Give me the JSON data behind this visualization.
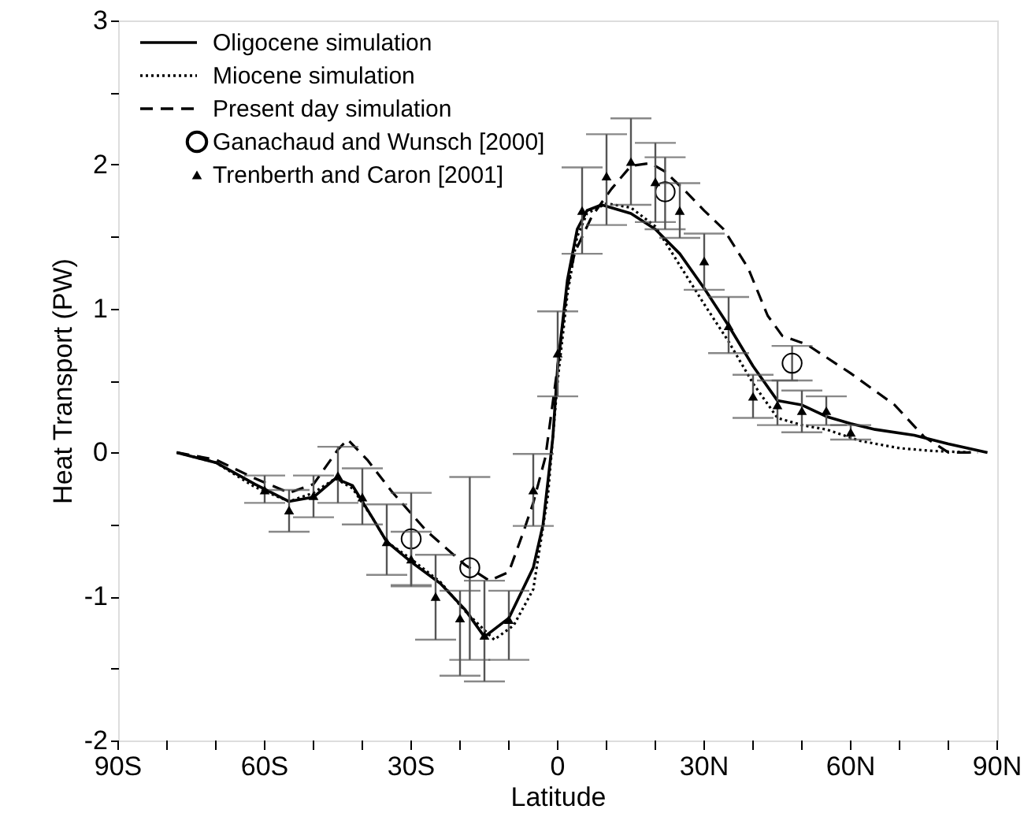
{
  "chart_data": {
    "type": "line",
    "xlabel": "Latitude",
    "ylabel": "Heat Transport (PW)",
    "xlim": [
      -90,
      90
    ],
    "ylim": [
      -2,
      3
    ],
    "xticks": [
      {
        "value": -90,
        "label": "90S"
      },
      {
        "value": -80,
        "label": null
      },
      {
        "value": -70,
        "label": null
      },
      {
        "value": -60,
        "label": "60S"
      },
      {
        "value": -50,
        "label": null
      },
      {
        "value": -40,
        "label": null
      },
      {
        "value": -30,
        "label": "30S"
      },
      {
        "value": -20,
        "label": null
      },
      {
        "value": -10,
        "label": null
      },
      0,
      {
        "value": 10,
        "label": null
      },
      {
        "value": 20,
        "label": null
      },
      {
        "value": 30,
        "label": "30N"
      },
      {
        "value": 40,
        "label": null
      },
      {
        "value": 50,
        "label": null
      },
      {
        "value": 60,
        "label": "60N"
      },
      {
        "value": 70,
        "label": null
      },
      {
        "value": 80,
        "label": null
      },
      {
        "value": 90,
        "label": "90N"
      }
    ],
    "yticks": [
      -2,
      {
        "value": -1.5,
        "label": null
      },
      -1,
      {
        "value": -0.5,
        "label": null
      },
      0,
      {
        "value": 0.5,
        "label": null
      },
      1,
      {
        "value": 1.5,
        "label": null
      },
      2,
      {
        "value": 2.5,
        "label": null
      },
      3
    ],
    "grid": false,
    "legend": "top left",
    "series": [
      {
        "name": "Oligocene simulation",
        "line_style": "solid",
        "marker": "none",
        "color": "#000000",
        "x": [
          -78,
          -70,
          -62,
          -55,
          -50,
          -45.5,
          -42,
          -38,
          -35,
          -30,
          -24,
          -19,
          -15,
          -10,
          -5,
          -3,
          -1,
          0,
          2,
          4,
          6,
          9,
          15,
          20,
          25,
          30,
          35,
          40,
          45,
          50,
          55,
          60,
          65,
          73,
          80,
          88
        ],
        "values": [
          0,
          -0.07,
          -0.22,
          -0.34,
          -0.31,
          -0.18,
          -0.23,
          -0.45,
          -0.62,
          -0.76,
          -0.91,
          -1.09,
          -1.28,
          -1.15,
          -0.8,
          -0.5,
          0.1,
          0.6,
          1.2,
          1.55,
          1.68,
          1.72,
          1.66,
          1.55,
          1.38,
          1.14,
          0.88,
          0.6,
          0.36,
          0.33,
          0.25,
          0.2,
          0.16,
          0.12,
          0.06,
          0
        ]
      },
      {
        "name": "Miocene simulation",
        "line_style": "dotted",
        "marker": "none",
        "color": "#000000",
        "x": [
          -78,
          -70,
          -62,
          -55,
          -50,
          -45.5,
          -42,
          -38,
          -35,
          -30,
          -24,
          -19,
          -13,
          -9,
          -5,
          -2,
          0,
          2,
          4,
          6,
          10,
          15,
          20,
          25,
          30,
          35,
          40,
          45,
          50,
          55,
          62,
          70,
          77,
          85
        ],
        "values": [
          0,
          -0.07,
          -0.24,
          -0.34,
          -0.28,
          -0.18,
          -0.25,
          -0.45,
          -0.62,
          -0.74,
          -0.9,
          -1.1,
          -1.3,
          -1.2,
          -0.95,
          -0.3,
          0.5,
          1.1,
          1.5,
          1.66,
          1.73,
          1.7,
          1.57,
          1.3,
          1.03,
          0.77,
          0.48,
          0.24,
          0.19,
          0.16,
          0.08,
          0.03,
          0.01,
          0
        ]
      },
      {
        "name": "Present day simulation",
        "line_style": "dashed",
        "marker": "none",
        "color": "#000000",
        "x": [
          -78,
          -70,
          -62,
          -55,
          -50,
          -45,
          -43,
          -39,
          -34,
          -27,
          -19,
          -14,
          -10,
          -7,
          -5,
          -2.5,
          0,
          2,
          3.5,
          7,
          11,
          15,
          19,
          22,
          26,
          30,
          34,
          39,
          43,
          46,
          51,
          60,
          69,
          75,
          80,
          86
        ],
        "values": [
          0,
          -0.05,
          -0.18,
          -0.28,
          -0.22,
          0.02,
          0.09,
          -0.05,
          -0.27,
          -0.54,
          -0.78,
          -0.89,
          -0.83,
          -0.55,
          -0.35,
          -0.03,
          0.6,
          1.15,
          1.39,
          1.64,
          1.83,
          1.99,
          2.01,
          1.95,
          1.82,
          1.68,
          1.55,
          1.28,
          0.95,
          0.81,
          0.75,
          0.55,
          0.33,
          0.11,
          0.0,
          0
        ]
      },
      {
        "name": "Ganachaud and Wunsch [2000]",
        "type": "scatter",
        "marker": "circle",
        "color": "#000000",
        "x": [
          -30,
          -18,
          22,
          48
        ],
        "values": [
          -0.6,
          -0.8,
          1.81,
          0.62
        ],
        "errors": [
          [
            -0.92,
            -0.28
          ],
          [
            -1.44,
            -0.17
          ],
          [
            1.55,
            2.05
          ],
          [
            0.5,
            0.74
          ]
        ]
      },
      {
        "name": "Trenberth and Caron [2001]",
        "type": "scatter",
        "marker": "triangle",
        "color": "#000000",
        "x": [
          -60,
          -55,
          -50,
          -45,
          -40,
          -35,
          -30,
          -25,
          -20,
          -15,
          -10,
          -5,
          0,
          5,
          10,
          15,
          20,
          25,
          30,
          35,
          40,
          45,
          50,
          55,
          60
        ],
        "values": [
          -0.26,
          -0.4,
          -0.3,
          -0.16,
          -0.31,
          -0.62,
          -0.74,
          -1.0,
          -1.15,
          -1.27,
          -1.16,
          -0.26,
          0.69,
          1.68,
          1.92,
          2.02,
          1.88,
          1.68,
          1.33,
          0.88,
          0.39,
          0.33,
          0.29,
          0.29,
          0.14
        ],
        "errors": [
          [
            -0.35,
            -0.16
          ],
          [
            -0.55,
            -0.26
          ],
          [
            -0.45,
            -0.16
          ],
          [
            -0.35,
            0.04
          ],
          [
            -0.5,
            -0.11
          ],
          [
            -0.85,
            -0.36
          ],
          [
            -0.93,
            -0.55
          ],
          [
            -1.3,
            -0.71
          ],
          [
            -1.55,
            -0.96
          ],
          [
            -1.59,
            -0.89
          ],
          [
            -1.44,
            -0.96
          ],
          [
            -0.51,
            -0.01
          ],
          [
            0.39,
            0.98
          ],
          [
            1.38,
            1.98
          ],
          [
            1.58,
            2.21
          ],
          [
            1.72,
            2.32
          ],
          [
            1.6,
            2.15
          ],
          [
            1.49,
            1.87
          ],
          [
            1.13,
            1.52
          ],
          [
            0.69,
            1.08
          ],
          [
            0.24,
            0.54
          ],
          [
            0.19,
            0.5
          ],
          [
            0.14,
            0.43
          ],
          [
            0.19,
            0.39
          ],
          [
            0.09,
            0.19
          ]
        ]
      }
    ]
  }
}
